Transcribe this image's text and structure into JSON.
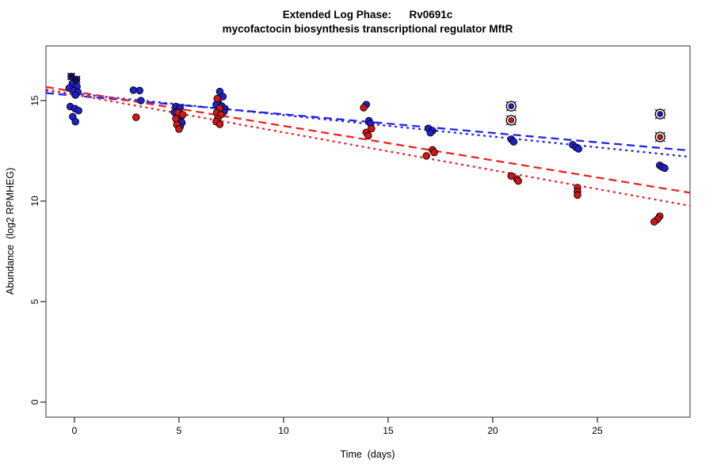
{
  "chart_data": {
    "type": "scatter",
    "title": "Extended Log Phase:      Rv0691c",
    "subtitle": "mycofactocin biosynthesis transcriptional regulator MftR",
    "xlabel": "Time  (days)",
    "ylabel": "Abundance  (log2 RPMHEG)",
    "x_ticks": [
      0,
      5,
      10,
      15,
      20,
      25
    ],
    "y_ticks": [
      0,
      5,
      10,
      15
    ],
    "xlim": [
      -1.36,
      29.43
    ],
    "ylim": [
      -0.75,
      17.72
    ],
    "grid": false,
    "legend": "none",
    "colors": {
      "blue_point": "#2121cc",
      "red_point": "#d41515",
      "blue_line": "#2222ee",
      "red_line": "#ee2222",
      "marker_black": "#000000",
      "box": "#555555"
    },
    "series": [
      {
        "name": "condition-blue",
        "color_key": "blue_point",
        "points": [
          [
            -0.15,
            16.2
          ],
          [
            0.1,
            16.05
          ],
          [
            -0.1,
            15.85
          ],
          [
            0.12,
            15.7
          ],
          [
            -0.25,
            15.62
          ],
          [
            -0.03,
            15.5
          ],
          [
            0.17,
            15.42
          ],
          [
            0.05,
            15.28
          ],
          [
            -0.2,
            14.7
          ],
          [
            0.03,
            14.6
          ],
          [
            0.2,
            14.5
          ],
          [
            -0.08,
            14.2
          ],
          [
            0.05,
            13.95
          ],
          [
            2.82,
            15.52
          ],
          [
            3.12,
            15.5
          ],
          [
            3.18,
            15.0
          ],
          [
            4.85,
            14.7
          ],
          [
            5.05,
            14.65
          ],
          [
            4.78,
            14.42
          ],
          [
            5.12,
            14.22
          ],
          [
            4.92,
            14.02
          ],
          [
            5.14,
            13.9
          ],
          [
            5.05,
            13.7
          ],
          [
            6.95,
            15.45
          ],
          [
            7.1,
            15.2
          ],
          [
            6.88,
            14.9
          ],
          [
            6.78,
            14.8
          ],
          [
            7.05,
            14.72
          ],
          [
            7.2,
            14.6
          ],
          [
            7.15,
            14.45
          ],
          [
            13.95,
            14.8
          ],
          [
            14.08,
            14.0
          ],
          [
            14.16,
            13.85
          ],
          [
            16.92,
            13.62
          ],
          [
            17.12,
            13.5
          ],
          [
            17.02,
            13.4
          ],
          [
            20.88,
            13.08
          ],
          [
            21.0,
            12.95
          ],
          [
            23.82,
            12.8
          ],
          [
            23.98,
            12.68
          ],
          [
            24.1,
            12.6
          ],
          [
            27.98,
            11.78
          ],
          [
            28.1,
            11.7
          ],
          [
            28.22,
            11.64
          ]
        ]
      },
      {
        "name": "condition-red",
        "color_key": "red_point",
        "points": [
          [
            2.95,
            14.17
          ],
          [
            4.95,
            14.4
          ],
          [
            5.18,
            14.3
          ],
          [
            4.85,
            14.1
          ],
          [
            4.9,
            13.8
          ],
          [
            5.0,
            13.58
          ],
          [
            6.83,
            15.1
          ],
          [
            6.95,
            14.62
          ],
          [
            6.8,
            14.4
          ],
          [
            7.0,
            14.3
          ],
          [
            6.85,
            14.1
          ],
          [
            6.78,
            13.95
          ],
          [
            6.95,
            13.82
          ],
          [
            13.83,
            14.65
          ],
          [
            14.2,
            13.6
          ],
          [
            13.95,
            13.42
          ],
          [
            14.05,
            13.25
          ],
          [
            17.12,
            12.55
          ],
          [
            17.2,
            12.42
          ],
          [
            16.83,
            12.25
          ],
          [
            20.88,
            11.25
          ],
          [
            21.15,
            11.1
          ],
          [
            21.22,
            11.0
          ],
          [
            24.05,
            10.67
          ],
          [
            24.05,
            10.47
          ],
          [
            24.05,
            10.3
          ],
          [
            27.98,
            9.25
          ],
          [
            27.88,
            9.1
          ],
          [
            27.72,
            8.97
          ]
        ]
      }
    ],
    "flagged_points": {
      "x_marked": [
        {
          "series": "condition-blue",
          "x": -0.15,
          "y": 16.2
        },
        {
          "series": "condition-blue",
          "x": 0.1,
          "y": 16.05
        }
      ],
      "circled_outliers": [
        {
          "series": "condition-blue",
          "x": 20.88,
          "y": 14.72
        },
        {
          "series": "condition-red",
          "x": 20.88,
          "y": 14.02
        },
        {
          "series": "condition-blue",
          "x": 28.0,
          "y": 14.33
        },
        {
          "series": "condition-red",
          "x": 28.0,
          "y": 13.19
        }
      ]
    },
    "fit_lines": [
      {
        "name": "blue-longdash",
        "color_key": "blue_line",
        "dash": "long",
        "intercept": 15.25,
        "slope": -0.093
      },
      {
        "name": "blue-dotted",
        "color_key": "blue_line",
        "dash": "dot",
        "intercept": 15.35,
        "slope": -0.107
      },
      {
        "name": "red-longdash",
        "color_key": "red_line",
        "dash": "long",
        "intercept": 15.45,
        "slope": -0.171
      },
      {
        "name": "red-dotted",
        "color_key": "red_line",
        "dash": "dot",
        "intercept": 15.3,
        "slope": -0.188
      }
    ]
  }
}
